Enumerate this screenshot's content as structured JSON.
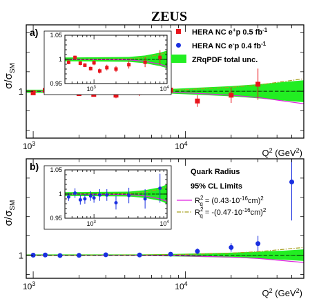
{
  "title": "ZEUS",
  "colors": {
    "hera_ep": "#e8141c",
    "hera_em": "#1a2fe0",
    "band_fill": "#22ee22",
    "band_line": "#1c9e1c",
    "quark_pos": "#e020e0",
    "quark_neg": "#a8a020",
    "frame": "#000000"
  },
  "icons": {
    "marker_ep": "square-marker",
    "marker_em": "circle-marker",
    "band_swatch": "green-box"
  },
  "chart_data": [
    {
      "panel_label": "a)",
      "type": "scatter",
      "x_scale": "log",
      "xlim": [
        900,
        60000
      ],
      "ylim": [
        0.88,
        1.17
      ],
      "ylabel": "σ/σ_SM",
      "ylabel_main": "σ/σ",
      "ylabel_sub": "SM",
      "xlabel": "Q² (GeV²)",
      "xlabel_main": "Q",
      "xlabel_sup": "2",
      "xlabel_units": "(GeV",
      "xlabel_units_sup": "2",
      "xlabel_close": ")",
      "y_ticks": [
        "1"
      ],
      "y_tick_values": [
        1
      ],
      "x_ticks": [
        {
          "value": 1000,
          "base": "10",
          "exp": "3"
        },
        {
          "value": 10000,
          "base": "10",
          "exp": "4"
        }
      ],
      "series": [
        {
          "name": "HERA NC e+p 0.5 fb-1",
          "marker": "square",
          "x": [
            1000,
            1200,
            1500,
            2000,
            2500,
            3000,
            3500,
            5000,
            8000,
            12000,
            20000,
            30000
          ],
          "y": [
            0.996,
            1.002,
            0.998,
            0.994,
            0.992,
            0.998,
            0.99,
            0.997,
            1.003,
            0.975,
            0.99,
            1.018
          ],
          "yerr": [
            0.005,
            0.005,
            0.005,
            0.006,
            0.006,
            0.007,
            0.008,
            0.009,
            0.012,
            0.015,
            0.02,
            0.04
          ]
        }
      ],
      "bands": [
        {
          "name": "ZRqPDF total unc.",
          "x": [
            900,
            5000,
            8000,
            12000,
            20000,
            30000,
            45000,
            60000
          ],
          "half_width": [
            0.004,
            0.004,
            0.006,
            0.009,
            0.013,
            0.018,
            0.024,
            0.028
          ],
          "center": [
            1.0,
            1.0,
            1.0,
            1.0,
            1.0,
            1.0,
            1.0,
            1.0
          ]
        }
      ],
      "curves": [
        {
          "name": "Rq2 pos",
          "style": "solid",
          "x": [
            900,
            5000,
            10000,
            20000,
            30000,
            60000
          ],
          "y": [
            1.0,
            0.999,
            0.996,
            0.99,
            0.984,
            0.968
          ]
        },
        {
          "name": "Rq2 neg",
          "style": "dashdot",
          "x": [
            900,
            5000,
            10000,
            20000,
            30000,
            60000
          ],
          "y": [
            1.0,
            1.001,
            1.004,
            1.01,
            1.016,
            1.032
          ]
        }
      ],
      "legend": [
        {
          "marker": "square",
          "label": "HERA NC  e",
          "sup": "+",
          "rest": "p  0.5 fb",
          "sup2": "-1"
        },
        {
          "marker": "circle",
          "label": "HERA NC  e",
          "sup": "-",
          "rest": "p  0.4 fb",
          "sup2": "-1"
        },
        {
          "marker": "band",
          "label": "ZRqPDF total unc."
        }
      ],
      "inset": {
        "xlim": [
          400,
          10000
        ],
        "ylim": [
          0.95,
          1.05
        ],
        "y_ticks": [
          "1.05",
          "1",
          "0.95"
        ],
        "y_tick_values": [
          1.05,
          1.0,
          0.95
        ],
        "x_ticks": [
          {
            "value": 1000,
            "base": "10",
            "exp": "3"
          },
          {
            "value": 10000,
            "base": "10",
            "exp": "4"
          }
        ],
        "marker": "square",
        "x": [
          450,
          550,
          650,
          750,
          900,
          1000,
          1200,
          1500,
          2000,
          3000,
          5000,
          8000
        ],
        "y": [
          0.994,
          1.004,
          0.992,
          0.988,
          0.981,
          0.993,
          0.976,
          0.983,
          0.98,
          0.989,
          0.994,
          1.004
        ],
        "yerr": [
          0.004,
          0.004,
          0.004,
          0.004,
          0.004,
          0.005,
          0.005,
          0.006,
          0.006,
          0.008,
          0.01,
          0.015
        ],
        "band_x": [
          400,
          3000,
          5000,
          8000,
          10000
        ],
        "band_half": [
          0.004,
          0.005,
          0.008,
          0.014,
          0.018
        ],
        "curve_pos": [
          1.0,
          0.999,
          0.996,
          0.99,
          0.985
        ],
        "curve_neg": [
          1.0,
          1.001,
          1.004,
          1.01,
          1.015
        ]
      }
    },
    {
      "panel_label": "b)",
      "type": "scatter",
      "x_scale": "log",
      "xlim": [
        900,
        60000
      ],
      "ylim": [
        0.88,
        1.5
      ],
      "ylabel": "σ/σ_SM",
      "ylabel_main": "σ/σ",
      "ylabel_sub": "SM",
      "xlabel": "Q² (GeV²)",
      "xlabel_main": "Q",
      "xlabel_sup": "2",
      "xlabel_units": "(GeV",
      "xlabel_units_sup": "2",
      "xlabel_close": ")",
      "y_ticks": [
        "1"
      ],
      "y_tick_values": [
        1
      ],
      "x_ticks": [
        {
          "value": 1000,
          "base": "10",
          "exp": "3"
        },
        {
          "value": 10000,
          "base": "10",
          "exp": "4"
        }
      ],
      "series": [
        {
          "name": "HERA NC e-p 0.4 fb-1",
          "marker": "circle",
          "x": [
            1000,
            1200,
            1500,
            2000,
            3000,
            5000,
            8000,
            12000,
            20000,
            30000,
            50000
          ],
          "y": [
            1.0,
            1.001,
            0.998,
            0.999,
            1.002,
            1.001,
            1.005,
            1.02,
            1.04,
            1.06,
            1.38
          ],
          "yerr": [
            0.004,
            0.004,
            0.004,
            0.005,
            0.006,
            0.007,
            0.01,
            0.015,
            0.022,
            0.04,
            0.2
          ]
        }
      ],
      "bands": [
        {
          "name": "ZRqPDF total unc.",
          "x": [
            900,
            5000,
            8000,
            12000,
            20000,
            30000,
            45000,
            60000
          ],
          "half_width": [
            0.004,
            0.004,
            0.006,
            0.009,
            0.013,
            0.018,
            0.024,
            0.03
          ],
          "center": [
            1.0,
            1.0,
            1.0,
            1.0,
            1.0,
            1.0,
            1.0,
            1.0
          ]
        }
      ],
      "curves": [
        {
          "name": "Rq2 = (0.43·10-16cm)2",
          "style": "solid",
          "x": [
            900,
            5000,
            10000,
            20000,
            30000,
            60000
          ],
          "y": [
            1.0,
            0.999,
            0.996,
            0.99,
            0.983,
            0.962
          ]
        },
        {
          "name": "Rq2 = -(0.47·10-16cm)2",
          "style": "dashdot",
          "x": [
            900,
            5000,
            10000,
            20000,
            30000,
            60000
          ],
          "y": [
            1.0,
            1.001,
            1.004,
            1.011,
            1.018,
            1.04
          ]
        }
      ],
      "legend_title_1": "Quark Radius",
      "legend_title_2": "95% CL Limits",
      "legend": [
        {
          "style": "solid",
          "label": "R",
          "sub": "q",
          "sup": "2",
          "rest": " =  (0.43·10",
          "sup2": "-16",
          "rest2": "cm)",
          "sup3": "2"
        },
        {
          "style": "dashdot",
          "label": "R",
          "sub": "q",
          "sup": "2",
          "rest": " = -(0.47·10",
          "sup2": "-16",
          "rest2": "cm)",
          "sup3": "2"
        }
      ],
      "inset": {
        "xlim": [
          400,
          10000
        ],
        "ylim": [
          0.95,
          1.05
        ],
        "y_ticks": [
          "1.05",
          "1",
          "0.95"
        ],
        "y_tick_values": [
          1.05,
          1.0,
          0.95
        ],
        "x_ticks": [
          {
            "value": 1000,
            "base": "10",
            "exp": "3"
          },
          {
            "value": 10000,
            "base": "10",
            "exp": "4"
          }
        ],
        "marker": "circle",
        "x": [
          450,
          550,
          650,
          750,
          900,
          1000,
          1200,
          1500,
          2000,
          3000,
          5000,
          8000
        ],
        "y": [
          0.994,
          1.002,
          0.988,
          0.99,
          0.996,
          0.992,
          0.998,
          0.998,
          0.982,
          0.997,
          0.99,
          1.012
        ],
        "yerr": [
          0.008,
          0.01,
          0.01,
          0.01,
          0.01,
          0.01,
          0.012,
          0.012,
          0.014,
          0.016,
          0.02,
          0.03
        ],
        "band_x": [
          400,
          3000,
          5000,
          8000,
          10000
        ],
        "band_half": [
          0.004,
          0.005,
          0.008,
          0.014,
          0.02
        ],
        "curve_pos": [
          1.0,
          0.999,
          0.996,
          0.99,
          0.985
        ],
        "curve_neg": [
          1.0,
          1.001,
          1.004,
          1.01,
          1.015
        ]
      }
    }
  ]
}
